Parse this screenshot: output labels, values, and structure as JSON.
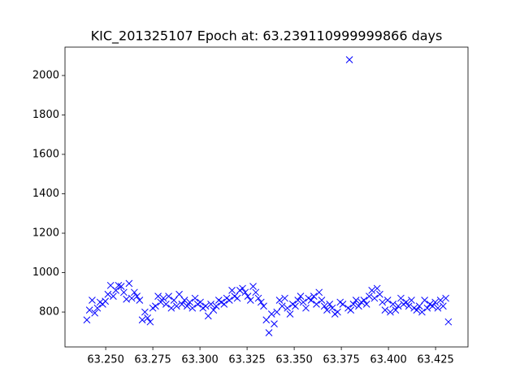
{
  "chart_data": {
    "type": "scatter",
    "title": "KIC_201325107 Epoch at: 63.239110999999866 days",
    "marker": "x",
    "color": "#0000ff",
    "xlim": [
      63.2284,
      63.4422
    ],
    "ylim": [
      623,
      2144
    ],
    "xticks": [
      {
        "value": 63.25,
        "label": "63.250"
      },
      {
        "value": 63.275,
        "label": "63.275"
      },
      {
        "value": 63.3,
        "label": "63.300"
      },
      {
        "value": 63.325,
        "label": "63.325"
      },
      {
        "value": 63.35,
        "label": "63.350"
      },
      {
        "value": 63.375,
        "label": "63.375"
      },
      {
        "value": 63.4,
        "label": "63.400"
      },
      {
        "value": 63.425,
        "label": "63.425"
      }
    ],
    "yticks": [
      800,
      1000,
      1200,
      1400,
      1600,
      1800,
      2000
    ],
    "x": [
      63.24,
      63.2414,
      63.2428,
      63.2442,
      63.2456,
      63.247,
      63.2484,
      63.2498,
      63.2512,
      63.2526,
      63.254,
      63.2554,
      63.2568,
      63.2582,
      63.2596,
      63.261,
      63.2624,
      63.2638,
      63.2652,
      63.2666,
      63.268,
      63.2694,
      63.2708,
      63.2722,
      63.2736,
      63.275,
      63.2764,
      63.2778,
      63.2792,
      63.2806,
      63.282,
      63.2834,
      63.2848,
      63.2862,
      63.2876,
      63.289,
      63.2904,
      63.2918,
      63.2932,
      63.2946,
      63.296,
      63.2974,
      63.2988,
      63.3002,
      63.3016,
      63.303,
      63.3044,
      63.3058,
      63.3072,
      63.3086,
      63.31,
      63.3114,
      63.3128,
      63.3142,
      63.3156,
      63.317,
      63.3184,
      63.3198,
      63.3212,
      63.3226,
      63.324,
      63.3254,
      63.3268,
      63.3282,
      63.3296,
      63.331,
      63.3324,
      63.3338,
      63.3352,
      63.3366,
      63.338,
      63.3394,
      63.3408,
      63.3422,
      63.3436,
      63.345,
      63.3464,
      63.3478,
      63.3492,
      63.3506,
      63.352,
      63.3534,
      63.3548,
      63.3562,
      63.3576,
      63.359,
      63.3604,
      63.3618,
      63.3632,
      63.3646,
      63.366,
      63.3674,
      63.3688,
      63.3702,
      63.3716,
      63.373,
      63.3744,
      63.3758,
      63.3793,
      63.3786,
      63.38,
      63.3814,
      63.3828,
      63.3842,
      63.3856,
      63.387,
      63.3884,
      63.3898,
      63.3912,
      63.3926,
      63.394,
      63.3954,
      63.3968,
      63.3982,
      63.3996,
      63.401,
      63.4024,
      63.4038,
      63.4052,
      63.4066,
      63.408,
      63.4094,
      63.4108,
      63.4122,
      63.4136,
      63.415,
      63.4164,
      63.4178,
      63.4192,
      63.4206,
      63.422,
      63.4234,
      63.4248,
      63.4262,
      63.4276,
      63.429,
      63.4304,
      63.4318
    ],
    "y": [
      760,
      810,
      860,
      795,
      820,
      850,
      840,
      855,
      890,
      935,
      880,
      910,
      935,
      930,
      900,
      865,
      945,
      870,
      900,
      880,
      860,
      760,
      800,
      770,
      750,
      820,
      830,
      880,
      850,
      870,
      840,
      880,
      820,
      860,
      830,
      890,
      840,
      860,
      830,
      850,
      820,
      870,
      840,
      850,
      820,
      830,
      780,
      840,
      810,
      830,
      860,
      850,
      840,
      870,
      860,
      910,
      880,
      870,
      910,
      920,
      900,
      880,
      860,
      930,
      900,
      870,
      850,
      830,
      760,
      695,
      790,
      740,
      800,
      860,
      830,
      870,
      820,
      790,
      840,
      830,
      860,
      880,
      850,
      820,
      870,
      860,
      880,
      840,
      900,
      860,
      830,
      810,
      840,
      820,
      790,
      800,
      850,
      840,
      2080,
      820,
      810,
      840,
      860,
      830,
      850,
      860,
      840,
      880,
      910,
      870,
      920,
      890,
      850,
      810,
      860,
      800,
      840,
      810,
      830,
      870,
      840,
      850,
      830,
      860,
      820,
      810,
      830,
      800,
      860,
      820,
      840,
      830,
      850,
      820,
      860,
      830,
      870,
      750
    ]
  }
}
